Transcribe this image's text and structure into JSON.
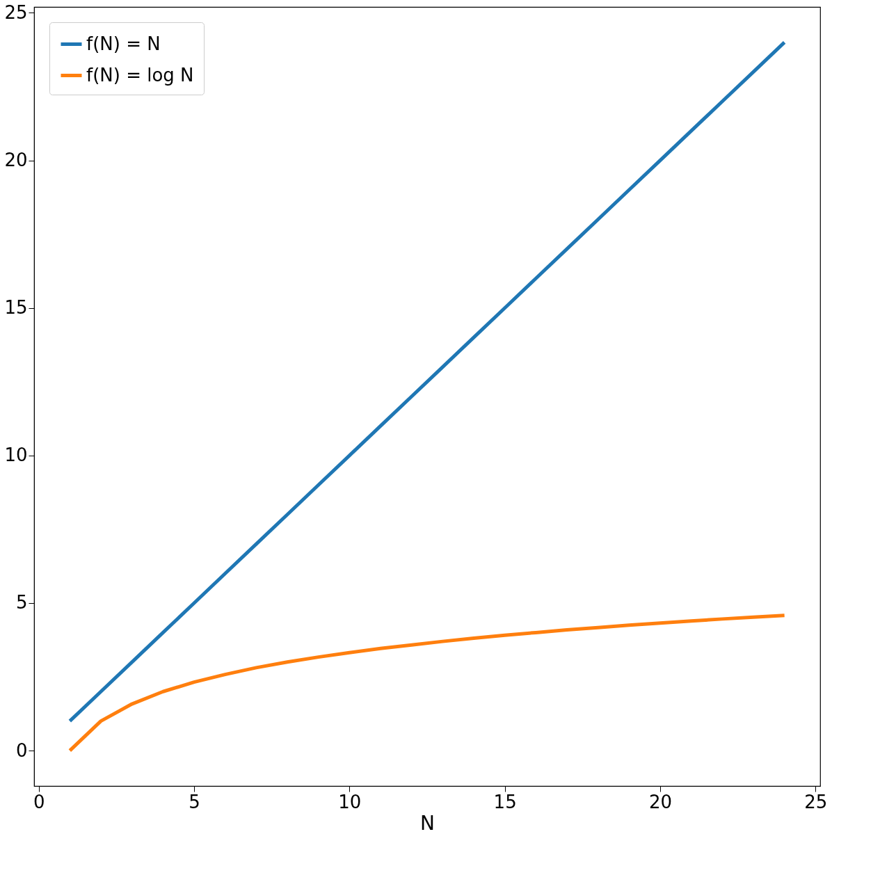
{
  "chart_data": {
    "type": "line",
    "xlabel": "N",
    "x": [
      1,
      2,
      3,
      4,
      5,
      6,
      7,
      8,
      9,
      10,
      11,
      12,
      13,
      14,
      15,
      16,
      17,
      18,
      19,
      20,
      21,
      22,
      23,
      24
    ],
    "series": [
      {
        "name": "f(N) = N",
        "color": "#1f77b4",
        "values": [
          1,
          2,
          3,
          4,
          5,
          6,
          7,
          8,
          9,
          10,
          11,
          12,
          13,
          14,
          15,
          16,
          17,
          18,
          19,
          20,
          21,
          22,
          23,
          24
        ]
      },
      {
        "name": "f(N) = log N",
        "color": "#ff7f0e",
        "values": [
          0,
          1,
          1.58,
          2,
          2.32,
          2.58,
          2.81,
          3,
          3.17,
          3.32,
          3.46,
          3.58,
          3.7,
          3.81,
          3.91,
          4,
          4.09,
          4.17,
          4.25,
          4.32,
          4.39,
          4.46,
          4.52,
          4.58
        ]
      }
    ],
    "xlim": [
      -0.15,
      25.15
    ],
    "ylim": [
      -1.2,
      25.2
    ],
    "xticks": [
      0,
      5,
      10,
      15,
      20,
      25
    ],
    "yticks": [
      0,
      5,
      10,
      15,
      20,
      25
    ],
    "grid": false,
    "legend": "top left",
    "line_style": "solid",
    "marker": "none"
  }
}
